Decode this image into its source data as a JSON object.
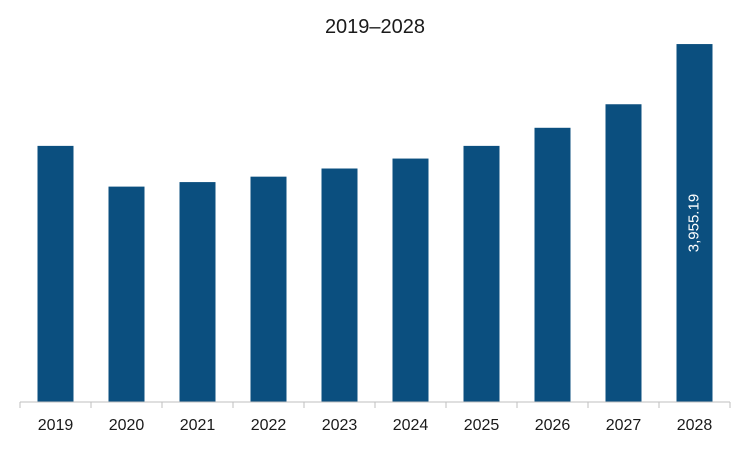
{
  "chart_data": {
    "type": "bar",
    "title": "2019–2028",
    "categories": [
      "2019",
      "2020",
      "2021",
      "2022",
      "2023",
      "2024",
      "2025",
      "2026",
      "2027",
      "2028"
    ],
    "values": [
      2830,
      2380,
      2430,
      2490,
      2580,
      2690,
      2830,
      3030,
      3290,
      3955.19
    ],
    "data_labels": [
      "",
      "",
      "",
      "",
      "",
      "",
      "",
      "",
      "",
      "3,955.19"
    ],
    "xlabel": "",
    "ylabel": "",
    "ylim": [
      0,
      4000
    ],
    "grid": false,
    "legend": "none",
    "bar_color": "#0b4f7f",
    "label_color": "#ffffff",
    "axis_color": "#bfbfbf"
  }
}
